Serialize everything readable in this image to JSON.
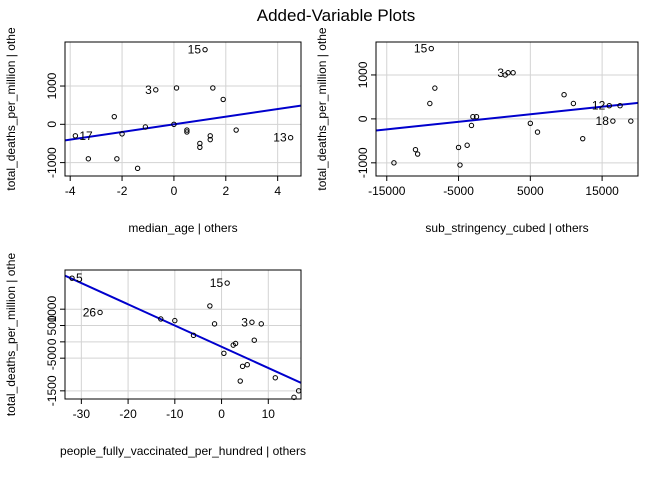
{
  "title": "Added-Variable Plots",
  "chart_data": [
    {
      "type": "scatter",
      "xlabel": "median_age | others",
      "ylabel": "total_deaths_per_million | othe",
      "xlim": [
        -4.2,
        4.9
      ],
      "ylim": [
        -1350,
        2150
      ],
      "xticks": [
        -4,
        -2,
        0,
        2,
        4
      ],
      "yticks": [
        -1000,
        0,
        1000
      ],
      "grid": true,
      "points": [
        {
          "x": -3.8,
          "y": -300,
          "label": "17"
        },
        {
          "x": -3.3,
          "y": -900
        },
        {
          "x": -2.3,
          "y": 200
        },
        {
          "x": -2.2,
          "y": -900
        },
        {
          "x": -2.0,
          "y": -250
        },
        {
          "x": -1.4,
          "y": -1150
        },
        {
          "x": -1.1,
          "y": -70
        },
        {
          "x": -0.7,
          "y": 900,
          "label": "3"
        },
        {
          "x": 0.0,
          "y": 0
        },
        {
          "x": 0.1,
          "y": 950
        },
        {
          "x": 0.5,
          "y": -150
        },
        {
          "x": 0.5,
          "y": -200
        },
        {
          "x": 1.0,
          "y": -500
        },
        {
          "x": 1.0,
          "y": -600
        },
        {
          "x": 1.2,
          "y": 1950,
          "label": "15"
        },
        {
          "x": 1.4,
          "y": -300
        },
        {
          "x": 1.4,
          "y": -400
        },
        {
          "x": 1.5,
          "y": 950
        },
        {
          "x": 1.9,
          "y": 650
        },
        {
          "x": 2.4,
          "y": -150
        },
        {
          "x": 4.5,
          "y": -350,
          "label": "13"
        }
      ],
      "fit": {
        "intercept": 0,
        "slope": 100
      }
    },
    {
      "type": "scatter",
      "xlabel": "sub_stringency_cubed | others",
      "ylabel": "total_deaths_per_million | othe",
      "xlim": [
        -16500,
        20000
      ],
      "ylim": [
        -1300,
        1750
      ],
      "xticks": [
        -15000,
        -5000,
        5000,
        15000
      ],
      "yticks": [
        -1000,
        0,
        1000
      ],
      "grid": true,
      "points": [
        {
          "x": -14000,
          "y": -1000
        },
        {
          "x": -11000,
          "y": -700
        },
        {
          "x": -10700,
          "y": -800
        },
        {
          "x": -9000,
          "y": 350
        },
        {
          "x": -8800,
          "y": 1600,
          "label": "15"
        },
        {
          "x": -8300,
          "y": 700
        },
        {
          "x": -5000,
          "y": -650
        },
        {
          "x": -4800,
          "y": -1050
        },
        {
          "x": -3000,
          "y": 50
        },
        {
          "x": -2500,
          "y": 50
        },
        {
          "x": -3800,
          "y": -600
        },
        {
          "x": -3200,
          "y": -150
        },
        {
          "x": 1500,
          "y": 1000
        },
        {
          "x": 1900,
          "y": 1050,
          "label": "3"
        },
        {
          "x": 2600,
          "y": 1050
        },
        {
          "x": 5000,
          "y": -100
        },
        {
          "x": 6000,
          "y": -300
        },
        {
          "x": 9700,
          "y": 550
        },
        {
          "x": 11000,
          "y": 350
        },
        {
          "x": 12300,
          "y": -450
        },
        {
          "x": 16000,
          "y": 300,
          "label": "12"
        },
        {
          "x": 17500,
          "y": 300
        },
        {
          "x": 16500,
          "y": -50,
          "label": "18"
        },
        {
          "x": 19000,
          "y": -50
        }
      ],
      "fit": {
        "intercept": 20,
        "slope": 0.0172
      }
    },
    {
      "type": "scatter",
      "xlabel": "people_fully_vaccinated_per_hundred | others",
      "ylabel": "total_deaths_per_million | othe",
      "xlim": [
        -33.5,
        17
      ],
      "ylim": [
        -1750,
        2200
      ],
      "xticks": [
        -30,
        -20,
        -10,
        0,
        10
      ],
      "yticks": [
        -1500,
        -500,
        0,
        500,
        1000
      ],
      "grid": true,
      "points": [
        {
          "x": -32,
          "y": 1950,
          "label": "5"
        },
        {
          "x": -26,
          "y": 900,
          "label": "26"
        },
        {
          "x": -13,
          "y": 700
        },
        {
          "x": -10,
          "y": 650
        },
        {
          "x": -6,
          "y": 200
        },
        {
          "x": -2.5,
          "y": 1100
        },
        {
          "x": -1.5,
          "y": 550
        },
        {
          "x": 0.5,
          "y": -350
        },
        {
          "x": 1.2,
          "y": 1800,
          "label": "15"
        },
        {
          "x": 2.5,
          "y": -100
        },
        {
          "x": 3.0,
          "y": -50
        },
        {
          "x": 4.0,
          "y": -1200
        },
        {
          "x": 4.5,
          "y": -750
        },
        {
          "x": 5.5,
          "y": -700
        },
        {
          "x": 6.5,
          "y": 600,
          "label": "3"
        },
        {
          "x": 7.0,
          "y": 50
        },
        {
          "x": 8.5,
          "y": 550
        },
        {
          "x": 11.5,
          "y": -1100
        },
        {
          "x": 15.5,
          "y": -1700
        },
        {
          "x": 16.5,
          "y": -1500
        }
      ],
      "fit": {
        "intercept": -150,
        "slope": -65
      }
    }
  ]
}
